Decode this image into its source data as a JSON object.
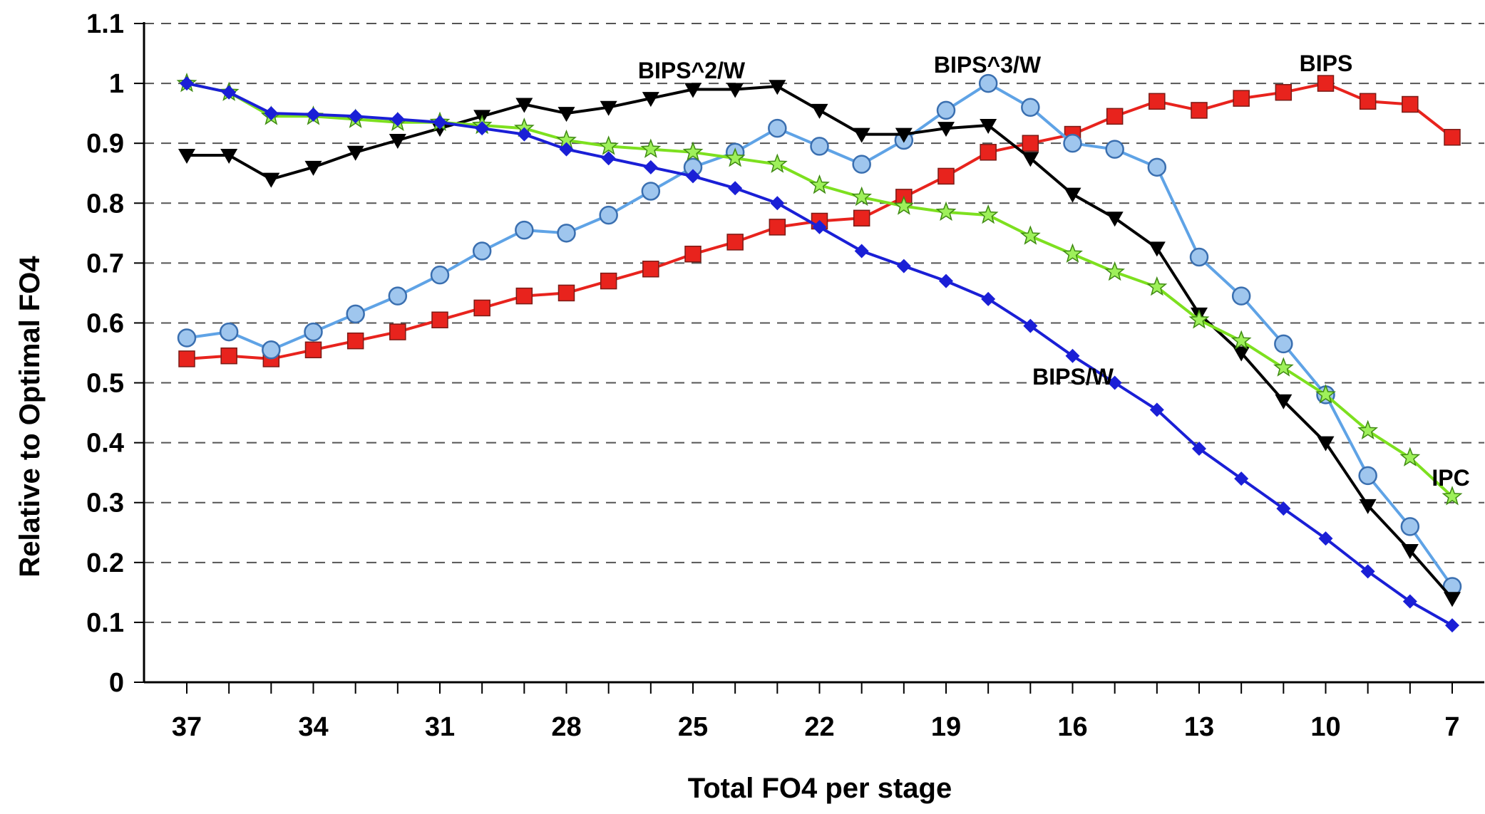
{
  "chart_data": {
    "type": "line",
    "title": "",
    "xlabel": "Total FO4 per stage",
    "ylabel": "Relative to Optimal FO4",
    "x": [
      37,
      36,
      35,
      34,
      33,
      32,
      31,
      30,
      29,
      28,
      27,
      26,
      25,
      24,
      23,
      22,
      21,
      20,
      19,
      18,
      17,
      16,
      15,
      14,
      13,
      12,
      11,
      10,
      9,
      8,
      7
    ],
    "x_tick_labels": [
      "37",
      "34",
      "31",
      "28",
      "25",
      "22",
      "19",
      "16",
      "13",
      "10",
      "7"
    ],
    "x_reversed": true,
    "xlim": [
      37,
      7
    ],
    "ylim": [
      0,
      1.1
    ],
    "y_tick_labels": [
      "0",
      "0.1",
      "0.2",
      "0.3",
      "0.4",
      "0.5",
      "0.6",
      "0.7",
      "0.8",
      "0.9",
      "1",
      "1.1"
    ],
    "grid": "horizontal dashed",
    "legend": "none (inline series labels)",
    "series": [
      {
        "name": "BIPS",
        "color": "#e8231d",
        "marker": "square",
        "values": [
          0.54,
          0.545,
          0.54,
          0.555,
          0.57,
          0.585,
          0.605,
          0.625,
          0.645,
          0.65,
          0.67,
          0.69,
          0.715,
          0.735,
          0.76,
          0.77,
          0.775,
          0.81,
          0.845,
          0.885,
          0.9,
          0.915,
          0.945,
          0.97,
          0.955,
          0.975,
          0.985,
          1.0,
          0.97,
          0.965,
          0.91
        ]
      },
      {
        "name": "BIPS^3/W",
        "color": "#5fa3e6",
        "marker": "circle",
        "values": [
          0.575,
          0.585,
          0.555,
          0.585,
          0.615,
          0.645,
          0.68,
          0.72,
          0.755,
          0.75,
          0.78,
          0.82,
          0.86,
          0.885,
          0.925,
          0.895,
          0.865,
          0.905,
          0.955,
          1.0,
          0.96,
          0.9,
          0.89,
          0.86,
          0.71,
          0.645,
          0.565,
          0.48,
          0.345,
          0.26,
          0.16
        ]
      },
      {
        "name": "BIPS^2/W",
        "color": "#000000",
        "marker": "triangle-down",
        "values": [
          0.88,
          0.88,
          0.84,
          0.86,
          0.885,
          0.905,
          0.925,
          0.945,
          0.965,
          0.95,
          0.96,
          0.975,
          0.99,
          0.99,
          0.995,
          0.955,
          0.915,
          0.915,
          0.925,
          0.93,
          0.875,
          0.815,
          0.775,
          0.725,
          0.615,
          0.55,
          0.47,
          0.4,
          0.295,
          0.22,
          0.14
        ]
      },
      {
        "name": "IPC",
        "color": "#7de01f",
        "marker": "star",
        "values": [
          1.0,
          0.985,
          0.945,
          0.945,
          0.94,
          0.935,
          0.935,
          0.93,
          0.925,
          0.905,
          0.895,
          0.89,
          0.885,
          0.875,
          0.865,
          0.83,
          0.81,
          0.795,
          0.785,
          0.78,
          0.745,
          0.715,
          0.685,
          0.66,
          0.605,
          0.57,
          0.525,
          0.48,
          0.42,
          0.375,
          0.31
        ]
      },
      {
        "name": "BIPS/W",
        "color": "#1a1fd6",
        "marker": "diamond",
        "values": [
          1.0,
          0.985,
          0.95,
          0.948,
          0.945,
          0.94,
          0.935,
          0.925,
          0.915,
          0.89,
          0.875,
          0.86,
          0.845,
          0.825,
          0.8,
          0.76,
          0.72,
          0.695,
          0.67,
          0.64,
          0.595,
          0.545,
          0.5,
          0.455,
          0.39,
          0.34,
          0.29,
          0.24,
          0.185,
          0.135,
          0.095
        ]
      }
    ],
    "annotations": [
      {
        "text": "BIPS",
        "series": "BIPS"
      },
      {
        "text": "BIPS^3/W",
        "series": "BIPS^3/W"
      },
      {
        "text": "BIPS^2/W",
        "series": "BIPS^2/W"
      },
      {
        "text": "IPC",
        "series": "IPC"
      },
      {
        "text": "BIPS/W",
        "series": "BIPS/W"
      }
    ]
  }
}
